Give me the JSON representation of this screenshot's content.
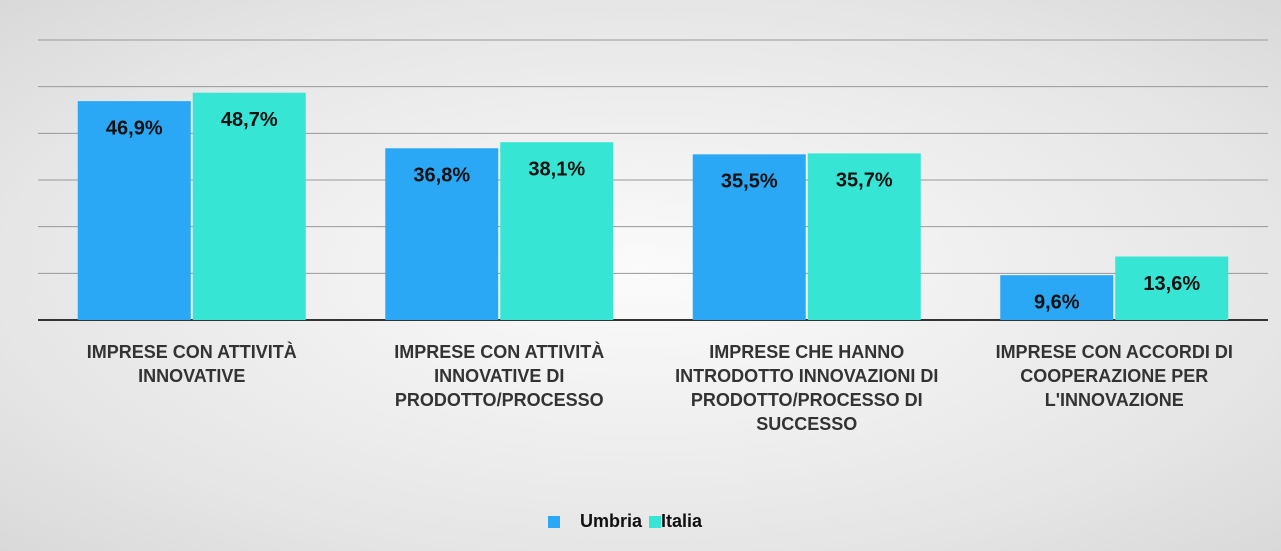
{
  "chart_data": {
    "type": "bar",
    "categories": [
      "IMPRESE CON ATTIVITÀ INNOVATIVE",
      "IMPRESE CON ATTIVITÀ INNOVATIVE DI PRODOTTO/PROCESSO",
      "IMPRESE CHE HANNO INTRODOTTO INNOVAZIONI DI PRODOTTO/PROCESSO DI SUCCESSO",
      "IMPRESE CON ACCORDI DI COOPERAZIONE PER L'INNOVAZIONE"
    ],
    "series": [
      {
        "name": "Umbria",
        "color": "#2aa7f5",
        "values": [
          46.9,
          36.8,
          35.5,
          9.6
        ],
        "value_labels": [
          "46,9%",
          "36,8%",
          "35,5%",
          "9,6%"
        ]
      },
      {
        "name": "Italia",
        "color": "#36e5d3",
        "values": [
          48.7,
          38.1,
          35.7,
          13.6
        ],
        "value_labels": [
          "48,7%",
          "38,1%",
          "35,7%",
          "13,6%"
        ]
      }
    ],
    "ylim": [
      0,
      60
    ],
    "yticks": [
      0,
      10,
      20,
      30,
      40,
      50,
      60
    ],
    "grid": true,
    "legend": "bottom"
  }
}
